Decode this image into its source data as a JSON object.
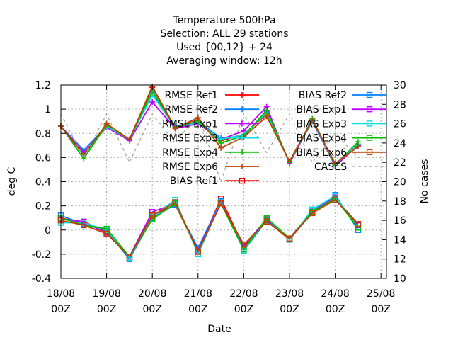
{
  "chart_data": {
    "type": "line",
    "title_lines": [
      "Temperature 500hPa",
      "Selection: ALL      29 stations",
      "Used {00,12} + 24",
      "Averaging window: 12h"
    ],
    "xlabel": "Date",
    "ylabel": "deg C",
    "y2label": "No cases",
    "ylim": [
      -0.4,
      1.2
    ],
    "y2lim": [
      10,
      30
    ],
    "yticks": [
      "-0.4",
      "-0.2",
      "0",
      "0.2",
      "0.4",
      "0.6",
      "0.8",
      "1",
      "1.2"
    ],
    "y2ticks": [
      "10",
      "12",
      "14",
      "16",
      "18",
      "20",
      "22",
      "24",
      "26",
      "28",
      "30"
    ],
    "xticks": [
      {
        "date": "18/08",
        "hour": "00Z"
      },
      {
        "date": "19/08",
        "hour": "00Z"
      },
      {
        "date": "20/08",
        "hour": "00Z"
      },
      {
        "date": "21/08",
        "hour": "00Z"
      },
      {
        "date": "22/08",
        "hour": "00Z"
      },
      {
        "date": "23/08",
        "hour": "00Z"
      },
      {
        "date": "24/08",
        "hour": "00Z"
      },
      {
        "date": "25/08",
        "hour": "00Z"
      }
    ],
    "x": [
      "18/08 00Z",
      "18/08 12Z",
      "19/08 00Z",
      "19/08 12Z",
      "20/08 00Z",
      "20/08 12Z",
      "21/08 00Z",
      "21/08 12Z",
      "22/08 00Z",
      "22/08 12Z",
      "23/08 00Z",
      "23/08 12Z",
      "24/08 00Z",
      "24/08 12Z"
    ],
    "legend_position": "top-right",
    "grid": true,
    "series": [
      {
        "name": "RMSE Ref1",
        "color": "#ff0000",
        "marker": "plus",
        "axis": "y",
        "values": [
          0.86,
          0.63,
          0.87,
          0.75,
          1.18,
          0.85,
          0.91,
          0.74,
          0.79,
          0.96,
          0.56,
          0.91,
          0.54,
          0.71
        ]
      },
      {
        "name": "RMSE Ref2",
        "color": "#0080ff",
        "marker": "plus",
        "axis": "y",
        "values": [
          0.86,
          0.66,
          0.86,
          0.75,
          1.14,
          0.86,
          0.9,
          0.76,
          0.78,
          0.98,
          0.56,
          0.9,
          0.53,
          0.7
        ]
      },
      {
        "name": "RMSE Exp1",
        "color": "#c000ff",
        "marker": "plus",
        "axis": "y",
        "values": [
          0.86,
          0.64,
          0.85,
          0.74,
          1.06,
          0.84,
          0.88,
          0.75,
          0.82,
          1.02,
          0.55,
          0.91,
          0.53,
          0.7
        ]
      },
      {
        "name": "RMSE Exp3",
        "color": "#00e0e0",
        "marker": "plus",
        "axis": "y",
        "values": [
          0.86,
          0.62,
          0.86,
          0.75,
          1.12,
          0.85,
          0.89,
          0.75,
          0.79,
          0.97,
          0.56,
          0.91,
          0.54,
          0.71
        ]
      },
      {
        "name": "RMSE Exp4",
        "color": "#00c000",
        "marker": "plus",
        "axis": "y",
        "values": [
          0.86,
          0.59,
          0.87,
          0.75,
          1.15,
          0.85,
          0.9,
          0.72,
          0.78,
          0.99,
          0.56,
          0.92,
          0.54,
          0.73
        ]
      },
      {
        "name": "RMSE Exp6",
        "color": "#c04000",
        "marker": "plus",
        "axis": "y",
        "values": [
          0.86,
          0.62,
          0.88,
          0.75,
          1.19,
          0.84,
          0.93,
          0.68,
          0.77,
          0.94,
          0.57,
          0.91,
          0.55,
          0.69
        ]
      },
      {
        "name": "BIAS Ref1",
        "color": "#ff0000",
        "marker": "square",
        "axis": "y",
        "values": [
          0.1,
          0.06,
          -0.02,
          -0.22,
          0.12,
          0.21,
          -0.17,
          0.26,
          -0.14,
          0.08,
          -0.08,
          0.15,
          0.26,
          0.05
        ]
      },
      {
        "name": "BIAS Ref2",
        "color": "#0080ff",
        "marker": "square",
        "axis": "y",
        "values": [
          0.12,
          0.05,
          -0.01,
          -0.24,
          0.1,
          0.21,
          -0.15,
          0.24,
          -0.17,
          0.08,
          -0.07,
          0.14,
          0.29,
          0.0
        ]
      },
      {
        "name": "BIAS Exp1",
        "color": "#c000ff",
        "marker": "square",
        "axis": "y",
        "values": [
          0.09,
          0.07,
          -0.02,
          -0.22,
          0.15,
          0.22,
          -0.17,
          0.23,
          -0.13,
          0.09,
          -0.07,
          0.16,
          0.27,
          0.04
        ]
      },
      {
        "name": "BIAS Exp3",
        "color": "#00e0e0",
        "marker": "square",
        "axis": "y",
        "values": [
          0.06,
          0.06,
          0.0,
          -0.23,
          0.11,
          0.25,
          -0.2,
          0.23,
          -0.17,
          0.1,
          -0.08,
          0.17,
          0.28,
          0.02
        ]
      },
      {
        "name": "BIAS Exp4",
        "color": "#00c000",
        "marker": "square",
        "axis": "y",
        "values": [
          0.1,
          0.04,
          0.01,
          -0.22,
          0.09,
          0.22,
          -0.18,
          0.22,
          -0.16,
          0.1,
          -0.07,
          0.15,
          0.26,
          0.02
        ]
      },
      {
        "name": "BIAS Exp6",
        "color": "#c04000",
        "marker": "square",
        "axis": "y",
        "values": [
          0.08,
          0.04,
          -0.03,
          -0.22,
          0.12,
          0.23,
          -0.18,
          0.22,
          -0.12,
          0.07,
          -0.07,
          0.14,
          0.25,
          0.05
        ]
      },
      {
        "name": "CASES",
        "color": "#a0a0a0",
        "marker": "none",
        "dashed": true,
        "axis": "y2",
        "values": [
          27,
          22.5,
          27,
          22,
          27,
          24,
          27,
          20,
          27,
          23,
          27,
          22,
          25,
          22.5
        ]
      }
    ]
  }
}
